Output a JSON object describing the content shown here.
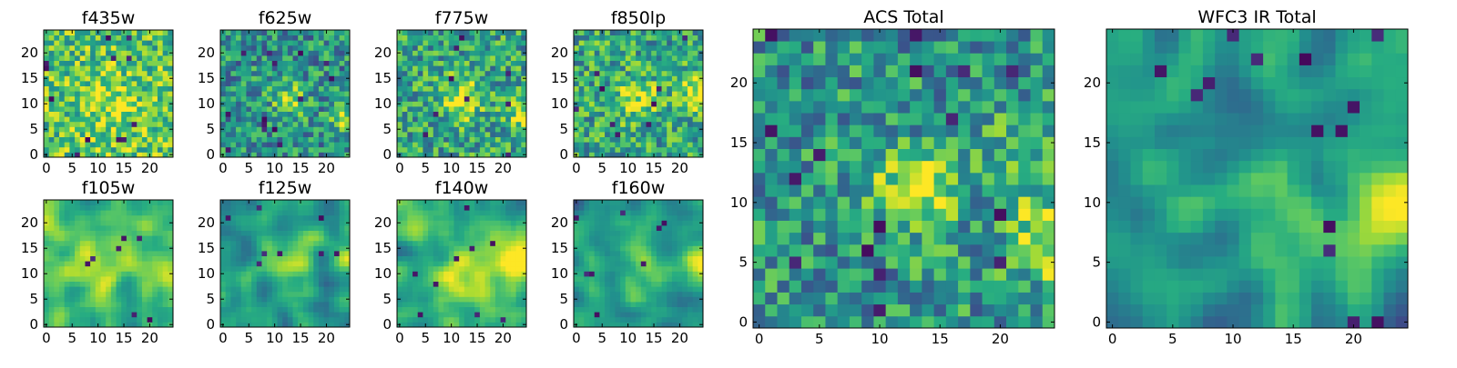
{
  "chart_data": [
    {
      "type": "heatmap",
      "title": "f435w",
      "grid_size": 25,
      "xlim": [
        0,
        24
      ],
      "ylim": [
        0,
        24
      ],
      "xticks": [
        0,
        5,
        10,
        15,
        20
      ],
      "yticks": [
        0,
        5,
        10,
        15,
        20
      ],
      "colormap": "viridis",
      "texture": "noise",
      "bright_regions": [
        [
          13,
          10,
          4,
          0.2
        ]
      ],
      "dark_spots": 12,
      "base_level": 0.72
    },
    {
      "type": "heatmap",
      "title": "f625w",
      "grid_size": 25,
      "xlim": [
        0,
        24
      ],
      "ylim": [
        0,
        24
      ],
      "xticks": [
        0,
        5,
        10,
        15,
        20
      ],
      "yticks": [
        0,
        5,
        10,
        15,
        20
      ],
      "colormap": "viridis",
      "texture": "noise",
      "bright_regions": [
        [
          13,
          11,
          2.5,
          0.35
        ],
        [
          24,
          7,
          2,
          0.4
        ]
      ],
      "dark_spots": 14,
      "base_level": 0.5
    },
    {
      "type": "heatmap",
      "title": "f775w",
      "grid_size": 25,
      "xlim": [
        0,
        24
      ],
      "ylim": [
        0,
        24
      ],
      "xticks": [
        0,
        5,
        10,
        15,
        20
      ],
      "yticks": [
        0,
        5,
        10,
        15,
        20
      ],
      "colormap": "viridis",
      "texture": "noise",
      "bright_regions": [
        [
          12,
          11,
          3,
          0.35
        ],
        [
          24,
          8,
          2,
          0.4
        ]
      ],
      "dark_spots": 9,
      "base_level": 0.58
    },
    {
      "type": "heatmap",
      "title": "f850lp",
      "grid_size": 25,
      "xlim": [
        0,
        24
      ],
      "ylim": [
        0,
        24
      ],
      "xticks": [
        0,
        5,
        10,
        15,
        20
      ],
      "yticks": [
        0,
        5,
        10,
        15,
        20
      ],
      "colormap": "viridis",
      "texture": "noise",
      "bright_regions": [
        [
          12,
          11,
          3,
          0.3
        ],
        [
          24,
          12,
          2.5,
          0.4
        ]
      ],
      "dark_spots": 9,
      "base_level": 0.6
    },
    {
      "type": "heatmap",
      "title": "f105w",
      "grid_size": 25,
      "xlim": [
        0,
        24
      ],
      "ylim": [
        0,
        24
      ],
      "xticks": [
        0,
        5,
        10,
        15,
        20
      ],
      "yticks": [
        0,
        5,
        10,
        15,
        20
      ],
      "colormap": "viridis",
      "texture": "smooth",
      "bright_regions": [
        [
          12,
          12,
          4,
          0.25
        ],
        [
          23,
          10,
          2,
          0.3
        ]
      ],
      "dark_spots": 7,
      "base_level": 0.68
    },
    {
      "type": "heatmap",
      "title": "f125w",
      "grid_size": 25,
      "xlim": [
        0,
        24
      ],
      "ylim": [
        0,
        24
      ],
      "xticks": [
        0,
        5,
        10,
        15,
        20
      ],
      "yticks": [
        0,
        5,
        10,
        15,
        20
      ],
      "colormap": "viridis",
      "texture": "smooth",
      "bright_regions": [
        [
          11,
          12,
          4,
          0.25
        ],
        [
          24,
          12,
          2,
          0.4
        ]
      ],
      "dark_spots": 8,
      "base_level": 0.56
    },
    {
      "type": "heatmap",
      "title": "f140w",
      "grid_size": 25,
      "xlim": [
        0,
        24
      ],
      "ylim": [
        0,
        24
      ],
      "xticks": [
        0,
        5,
        10,
        15,
        20
      ],
      "yticks": [
        0,
        5,
        10,
        15,
        20
      ],
      "colormap": "viridis",
      "texture": "smooth",
      "bright_regions": [
        [
          13,
          11,
          4,
          0.25
        ],
        [
          23,
          12,
          3,
          0.4
        ]
      ],
      "dark_spots": 9,
      "base_level": 0.62
    },
    {
      "type": "heatmap",
      "title": "f160w",
      "grid_size": 25,
      "xlim": [
        0,
        24
      ],
      "ylim": [
        0,
        24
      ],
      "xticks": [
        0,
        5,
        10,
        15,
        20
      ],
      "yticks": [
        0,
        5,
        10,
        15,
        20
      ],
      "colormap": "viridis",
      "texture": "smooth",
      "bright_regions": [
        [
          12,
          11,
          3,
          0.2
        ],
        [
          24,
          12,
          2.5,
          0.45
        ]
      ],
      "dark_spots": 8,
      "base_level": 0.5
    },
    {
      "type": "heatmap",
      "title": "ACS Total",
      "grid_size": 25,
      "xlim": [
        0,
        24
      ],
      "ylim": [
        0,
        24
      ],
      "xticks": [
        0,
        5,
        10,
        15,
        20
      ],
      "yticks": [
        0,
        5,
        10,
        15,
        20
      ],
      "colormap": "viridis",
      "texture": "noise",
      "bright_regions": [
        [
          13,
          11,
          2.5,
          0.4
        ],
        [
          24,
          7,
          2.5,
          0.45
        ],
        [
          22,
          15,
          2,
          0.2
        ]
      ],
      "dark_spots": 16,
      "base_level": 0.52
    },
    {
      "type": "heatmap",
      "title": "WFC3 IR Total",
      "grid_size": 25,
      "xlim": [
        0,
        24
      ],
      "ylim": [
        0,
        24
      ],
      "xticks": [
        0,
        5,
        10,
        15,
        20
      ],
      "yticks": [
        0,
        5,
        10,
        15,
        20
      ],
      "colormap": "viridis",
      "texture": "smooth",
      "bright_regions": [
        [
          24,
          10,
          2.5,
          0.5
        ],
        [
          13,
          11,
          3,
          0.18
        ]
      ],
      "dark_spots": 14,
      "base_level": 0.48
    }
  ]
}
